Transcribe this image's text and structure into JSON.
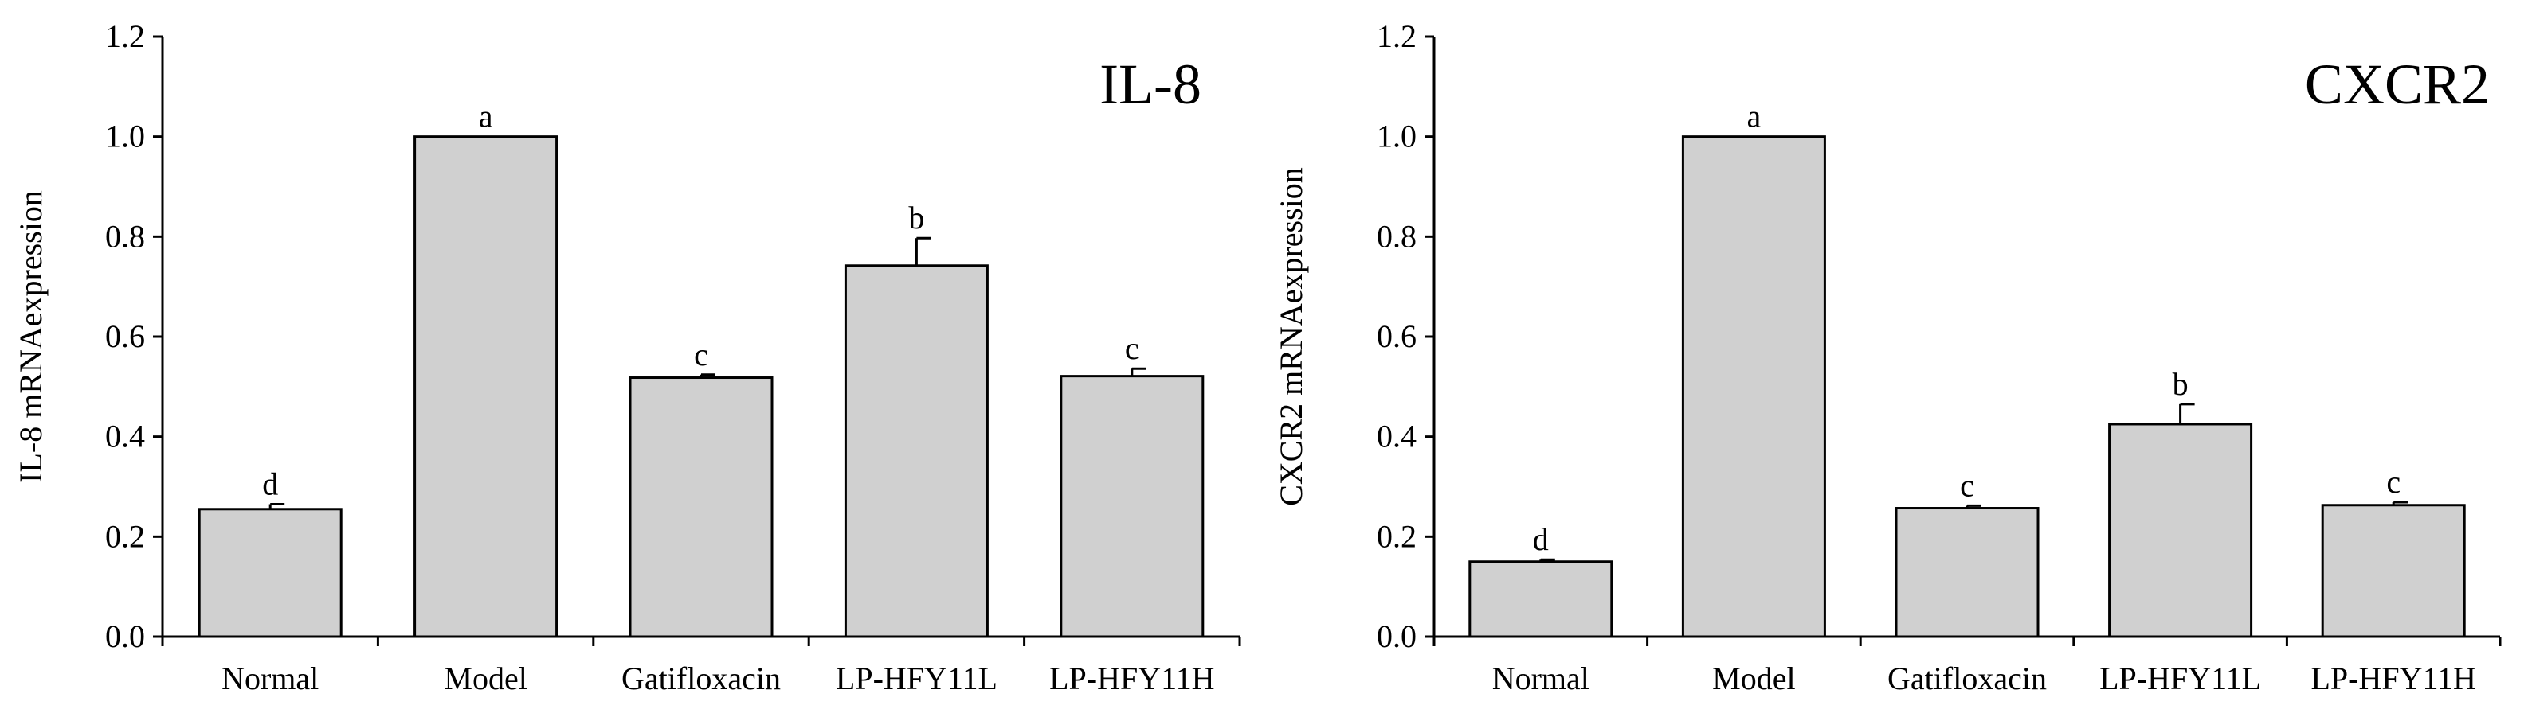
{
  "chart_data": [
    {
      "type": "bar",
      "title": "IL-8",
      "xlabel": "",
      "ylabel": "IL-8 mRNAexpression",
      "ylim": [
        0,
        1.2
      ],
      "yticks": [
        "0.0",
        "0.2",
        "0.4",
        "0.6",
        "0.8",
        "1.0",
        "1.2"
      ],
      "grid": false,
      "categories": [
        "Normal",
        "Model",
        "Gatifloxacin",
        "LP-HFY11L",
        "LP-HFY11H"
      ],
      "values": [
        0.255,
        1.0,
        0.518,
        0.742,
        0.521
      ],
      "errors": [
        0.01,
        0.0,
        0.006,
        0.055,
        0.015
      ],
      "significance": [
        "d",
        "a",
        "c",
        "b",
        "c"
      ],
      "bar_color": "#d0d0d0"
    },
    {
      "type": "bar",
      "title": "CXCR2",
      "xlabel": "",
      "ylabel": "CXCR2 mRNAexpression",
      "ylim": [
        0,
        1.2
      ],
      "yticks": [
        "0.0",
        "0.2",
        "0.4",
        "0.6",
        "0.8",
        "1.0",
        "1.2"
      ],
      "grid": false,
      "categories": [
        "Normal",
        "Model",
        "Gatifloxacin",
        "LP-HFY11L",
        "LP-HFY11H"
      ],
      "values": [
        0.15,
        1.0,
        0.257,
        0.425,
        0.263
      ],
      "errors": [
        0.004,
        0.0,
        0.005,
        0.04,
        0.006
      ],
      "significance": [
        "d",
        "a",
        "c",
        "b",
        "c"
      ],
      "bar_color": "#d0d0d0"
    }
  ]
}
